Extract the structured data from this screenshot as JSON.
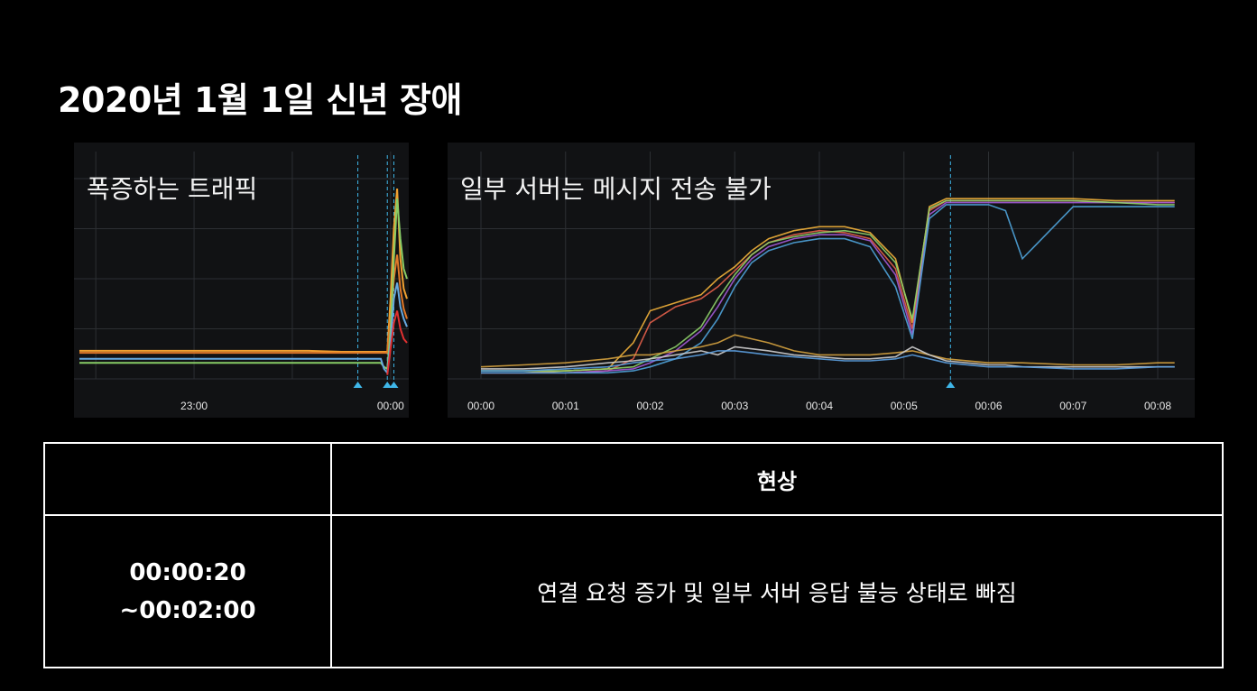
{
  "slide": {
    "title": "2020년 1월 1일 신년 장애"
  },
  "chart_data": [
    {
      "type": "line",
      "annotation": "폭증하는 트래픽",
      "x_ticks": [
        "23:00",
        "00:00"
      ],
      "grid": true,
      "x": [
        "22:25",
        "22:35",
        "22:45",
        "22:55",
        "23:05",
        "23:15",
        "23:25",
        "23:35",
        "23:45",
        "23:55",
        "23:57",
        "23:58",
        "23:59",
        "00:00",
        "00:01",
        "00:02",
        "00:03",
        "00:04",
        "00:05"
      ],
      "series": [
        {
          "color": "#f0a030",
          "values": [
            14,
            14,
            14,
            14,
            14,
            14,
            14,
            14,
            13.5,
            13.5,
            13.5,
            13.5,
            13.5,
            40,
            75,
            95,
            60,
            45,
            40
          ]
        },
        {
          "color": "#e07828",
          "values": [
            13,
            13,
            13,
            13,
            13,
            13,
            13,
            13,
            13,
            13,
            13,
            13,
            13,
            30,
            50,
            62,
            45,
            35,
            30
          ]
        },
        {
          "color": "#88cc66",
          "values": [
            8,
            8,
            8,
            8,
            8,
            8,
            8,
            8,
            8,
            8,
            8,
            6,
            5,
            24,
            60,
            90,
            70,
            55,
            50
          ]
        },
        {
          "color": "#66a9e0",
          "values": [
            10,
            10,
            10,
            10,
            10,
            10,
            10,
            10,
            10,
            10,
            10,
            5,
            3,
            18,
            40,
            48,
            36,
            30,
            26
          ]
        },
        {
          "color": "#e03030",
          "values": [
            null,
            null,
            null,
            null,
            null,
            null,
            null,
            null,
            null,
            null,
            null,
            null,
            2,
            15,
            28,
            34,
            25,
            20,
            18
          ]
        }
      ],
      "markers": [
        "23:50",
        "23:59",
        "00:01"
      ],
      "ylim": [
        0,
        100
      ]
    },
    {
      "type": "line",
      "annotation": "일부 서버는 메시지 전송 불가",
      "x_ticks": [
        "00:00",
        "00:01",
        "00:02",
        "00:03",
        "00:04",
        "00:05",
        "00:06",
        "00:07",
        "00:08"
      ],
      "grid": true,
      "x": [
        0,
        0.5,
        1,
        1.5,
        1.8,
        2,
        2.3,
        2.6,
        2.8,
        3,
        3.2,
        3.4,
        3.7,
        4,
        4.3,
        4.6,
        4.9,
        5.1,
        5.3,
        5.5,
        6,
        6.2,
        6.4,
        7,
        7.5,
        8,
        8.2
      ],
      "series": [
        {
          "color": "#f2b13a",
          "values": [
            3,
            3,
            4,
            5,
            18,
            34,
            38,
            42,
            50,
            56,
            64,
            70,
            74,
            76,
            76,
            73,
            60,
            28,
            86,
            90,
            90,
            90,
            90,
            90,
            89,
            89,
            89
          ]
        },
        {
          "color": "#e4604a",
          "values": [
            3,
            3,
            3,
            4,
            10,
            28,
            36,
            40,
            46,
            54,
            62,
            68,
            72,
            74,
            73,
            70,
            55,
            25,
            84,
            89,
            89,
            89,
            89,
            89,
            88,
            88,
            88
          ]
        },
        {
          "color": "#a35bd6",
          "values": [
            3,
            3,
            3,
            4,
            5,
            8,
            14,
            24,
            36,
            50,
            60,
            66,
            70,
            72,
            72,
            69,
            52,
            22,
            82,
            88,
            88,
            88,
            88,
            88,
            88,
            88,
            88
          ]
        },
        {
          "color": "#4fa3d9",
          "values": [
            3,
            3,
            3,
            3,
            4,
            6,
            10,
            18,
            30,
            46,
            58,
            64,
            68,
            70,
            70,
            66,
            46,
            20,
            80,
            87,
            87,
            84,
            60,
            86,
            86,
            86,
            86
          ]
        },
        {
          "color": "#8fd06a",
          "values": [
            4,
            4,
            4,
            5,
            6,
            10,
            16,
            26,
            40,
            52,
            62,
            68,
            71,
            73,
            74,
            72,
            58,
            30,
            85,
            89,
            89,
            89,
            89,
            89,
            88,
            87,
            87
          ]
        },
        {
          "color": "#d6a33f",
          "values": [
            6,
            7,
            8,
            10,
            12,
            12,
            14,
            16,
            18,
            22,
            20,
            18,
            14,
            12,
            12,
            12,
            13,
            14,
            12,
            10,
            8,
            8,
            8,
            7,
            7,
            8,
            8
          ]
        },
        {
          "color": "#cfcfcf",
          "values": [
            5,
            5,
            6,
            8,
            9,
            10,
            12,
            14,
            12,
            16,
            15,
            14,
            12,
            11,
            10,
            10,
            11,
            16,
            12,
            9,
            7,
            7,
            6,
            6,
            6,
            6,
            6
          ]
        },
        {
          "color": "#5ca0e0",
          "values": [
            4,
            4,
            5,
            6,
            8,
            9,
            10,
            12,
            14,
            14,
            13,
            12,
            11,
            10,
            9,
            9,
            10,
            12,
            10,
            8,
            6,
            6,
            6,
            5,
            5,
            6,
            6
          ]
        }
      ],
      "markers": [
        5.55
      ],
      "ylim": [
        0,
        100
      ]
    }
  ],
  "table": {
    "header": {
      "time": "",
      "phenomenon": "현상"
    },
    "rows": [
      {
        "time_line1": "00:00:20",
        "time_line2": "~00:02:00",
        "description": "연결 요청 증가 및 일부 서버 응답 불능 상태로 빠짐"
      }
    ]
  }
}
